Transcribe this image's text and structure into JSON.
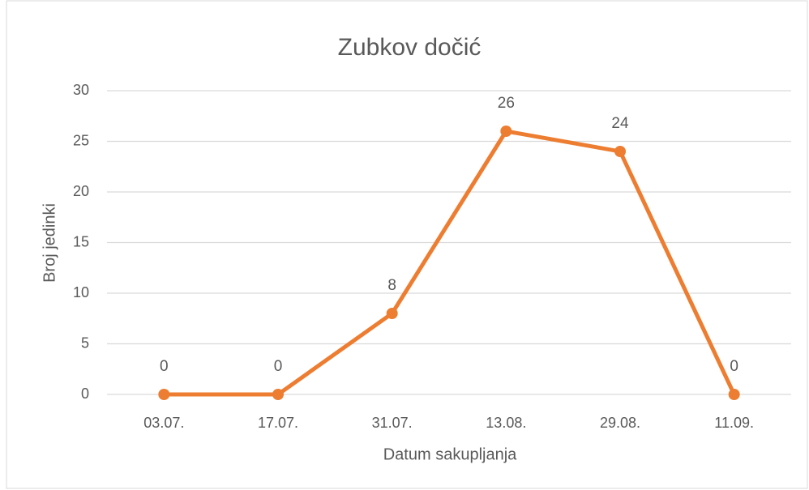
{
  "chart_data": {
    "type": "line",
    "title": "Zubkov dočić",
    "x_label": "Datum sakupljanja",
    "y_label": "Broj jedinki",
    "categories": [
      "03.07.",
      "17.07.",
      "31.07.",
      "13.08.",
      "29.08.",
      "11.09."
    ],
    "series": [
      {
        "name": "Zubkov dočić",
        "color": "#ed7d31",
        "values": [
          0,
          0,
          8,
          26,
          24,
          0
        ]
      }
    ],
    "ylim": [
      0,
      30
    ],
    "yticks": [
      0,
      5,
      10,
      15,
      20,
      25,
      30
    ],
    "grid": true,
    "data_labels": true
  }
}
